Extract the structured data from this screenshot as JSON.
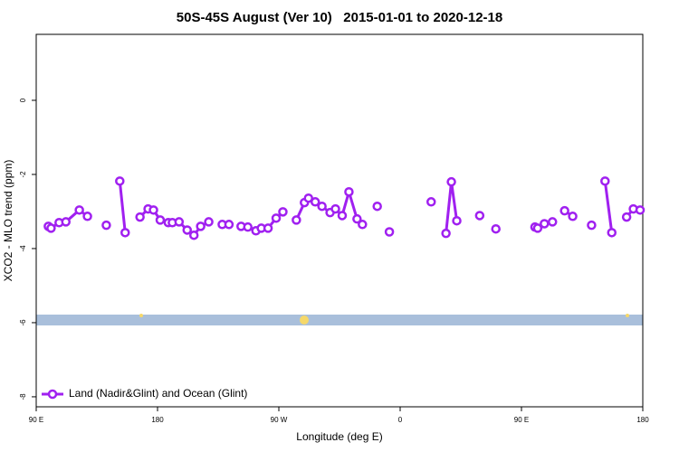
{
  "chart_data": {
    "type": "line",
    "title": "50S-45S August (Ver 10)   2015-01-01 to 2020-12-18",
    "x_label": "Longitude (deg E)",
    "y_label": "XCO2 - MLO trend (ppm)",
    "xlim": [
      90,
      540
    ],
    "xticks": [
      {
        "value": 90,
        "label": "90 E"
      },
      180,
      {
        "value": 270,
        "label": "90 W"
      },
      {
        "value": 360,
        "label": "0"
      },
      {
        "value": 450,
        "label": "90 E"
      },
      {
        "value": 540,
        "label": "180"
      }
    ],
    "ylim": [
      -8.27,
      1.78
    ],
    "yticks": [
      0,
      -2,
      -4,
      -6,
      -8
    ],
    "legend": "lower left",
    "series": [
      {
        "name": "Land (Nadir&Glint) and Ocean (Glint)",
        "color": "#a020f0",
        "x": [
          99,
          101,
          107,
          112,
          122,
          128,
          null,
          142,
          null,
          152,
          156,
          null,
          167,
          173,
          177,
          182,
          188,
          191,
          196,
          202,
          207,
          212,
          218,
          null,
          228,
          233,
          null,
          242,
          247,
          253,
          257,
          262,
          268,
          273,
          null,
          283,
          289,
          292,
          297,
          302,
          308,
          312,
          317,
          322,
          328,
          332,
          null,
          343,
          null,
          352,
          null,
          383,
          null,
          394,
          398,
          402,
          null,
          419,
          null,
          431,
          null,
          460,
          462,
          467,
          473,
          null,
          482,
          488,
          null,
          502,
          null,
          512,
          517,
          null,
          528,
          533,
          538
        ],
        "values": [
          -3.4,
          -3.45,
          -3.3,
          -3.28,
          -2.96,
          -3.13,
          null,
          -3.37,
          null,
          -2.18,
          -3.57,
          null,
          -3.15,
          -2.93,
          -2.96,
          -3.23,
          -3.3,
          -3.3,
          -3.28,
          -3.5,
          -3.64,
          -3.4,
          -3.28,
          null,
          -3.35,
          -3.35,
          null,
          -3.4,
          -3.42,
          -3.52,
          -3.45,
          -3.45,
          -3.18,
          -3.01,
          null,
          -3.23,
          -2.76,
          -2.64,
          -2.74,
          -2.86,
          -3.03,
          -2.93,
          -3.11,
          -2.47,
          -3.2,
          -3.35,
          null,
          -2.86,
          null,
          -3.55,
          null,
          -2.74,
          null,
          -3.59,
          -2.2,
          -3.25,
          null,
          -3.11,
          null,
          -3.47,
          null,
          -3.42,
          -3.45,
          -3.33,
          -3.28,
          null,
          -2.98,
          -3.13,
          null,
          -3.37,
          null,
          -2.18,
          -3.57,
          null,
          -3.15,
          -2.93,
          -2.96
        ]
      }
    ]
  }
}
